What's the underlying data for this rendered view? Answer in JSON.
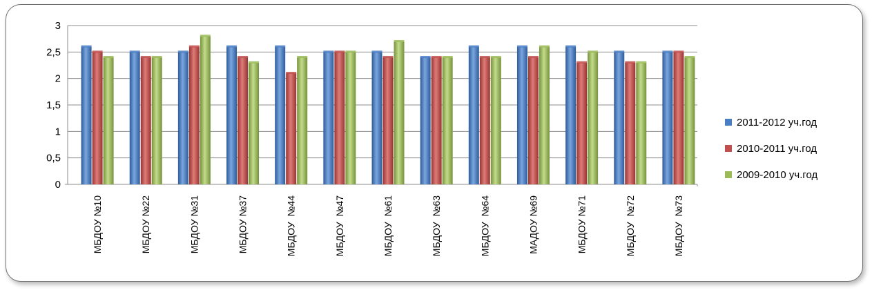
{
  "chart_data": {
    "type": "bar",
    "title": "",
    "xlabel": "",
    "ylabel": "",
    "ylim": [
      0,
      3
    ],
    "yticks": [
      "0",
      "0,5",
      "1",
      "1,5",
      "2",
      "2,5",
      "3"
    ],
    "grid": true,
    "legend_position": "right",
    "categories": [
      "МБДОУ №10",
      "МБДОУ №22",
      "МБДОУ №31",
      "МБДОУ №37",
      "МБДОУ  №44",
      "МБДОУ  №47",
      "МБДОУ  №61",
      "МБДОУ  №63",
      "МБДОУ  №64",
      "МАДОУ №69",
      "МБДОУ №71",
      "МБДОУ  №72",
      "МБДОУ  №73"
    ],
    "series": [
      {
        "name": "2011-2012 уч.год",
        "color": "#4a7ec4",
        "values": [
          2.6,
          2.5,
          2.5,
          2.6,
          2.6,
          2.5,
          2.5,
          2.4,
          2.6,
          2.6,
          2.6,
          2.5,
          2.5
        ]
      },
      {
        "name": "2010-2011 уч.год",
        "color": "#c0504d",
        "values": [
          2.5,
          2.4,
          2.6,
          2.4,
          2.1,
          2.5,
          2.4,
          2.4,
          2.4,
          2.4,
          2.3,
          2.3,
          2.5
        ]
      },
      {
        "name": "2009-2010 уч.год",
        "color": "#9bbb59",
        "values": [
          2.4,
          2.4,
          2.8,
          2.3,
          2.4,
          2.5,
          2.7,
          2.4,
          2.4,
          2.6,
          2.5,
          2.3,
          2.4
        ]
      }
    ]
  }
}
